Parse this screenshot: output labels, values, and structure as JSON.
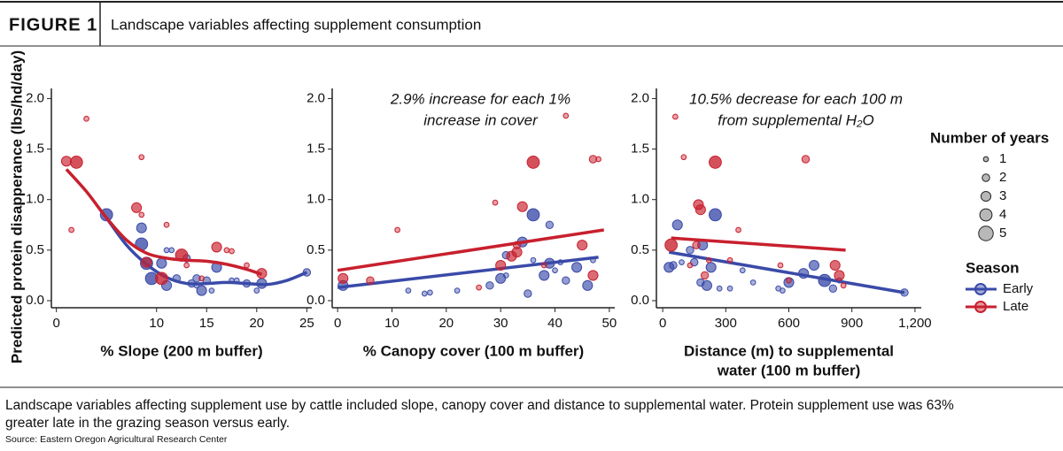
{
  "figure_label": "FIGURE 1",
  "title": "Landscape variables affecting supplement consumption",
  "caption": [
    "Landscape variables affecting supplement use by cattle included slope, canopy cover and distance to supplemental water. Protein supplement use was 63%",
    "greater late in the grazing season versus early."
  ],
  "source": "Source: Eastern Oregon Agricultural Research Center",
  "size_legend": {
    "title": "Number of years",
    "values": [
      1,
      2,
      3,
      4,
      5
    ]
  },
  "color_legend": {
    "title": "Season"
  },
  "chart_data": [
    {
      "type": "scatter",
      "ylabel": "Predicted protein disapperance (lbs/hd/day)",
      "xlabel": [
        "% Slope (200 m buffer)"
      ],
      "xlim": [
        -0.5,
        25.5
      ],
      "xticks": [
        0,
        10,
        15,
        20,
        25
      ],
      "ylim": [
        -0.07,
        2.1
      ],
      "yticks": [
        {
          "value": 0,
          "label": "0.0"
        },
        {
          "value": 0.5,
          "label": "0.5"
        },
        {
          "value": 1,
          "label": "1.0"
        },
        {
          "value": 1.5,
          "label": "1.5"
        },
        {
          "value": 2,
          "label": "2.0"
        }
      ],
      "series": [
        {
          "name": "Early",
          "color": "#3a4aa8",
          "x": [
            5,
            8.5,
            8.5,
            9,
            9.5,
            10.5,
            11,
            11,
            11.5,
            12,
            14,
            14,
            14.5,
            15,
            15.5,
            16,
            17.5,
            18,
            19,
            20,
            20.5,
            25,
            13,
            13.5
          ],
          "values": [
            0.85,
            0.72,
            0.56,
            0.37,
            0.22,
            0.37,
            0.15,
            0.5,
            0.5,
            0.22,
            0.22,
            0.15,
            0.1,
            0.2,
            0.1,
            0.33,
            0.2,
            0.2,
            0.17,
            0.1,
            0.17,
            0.28,
            0.42,
            0.17
          ],
          "sizes": [
            4,
            3,
            4,
            4,
            4,
            3,
            3,
            1,
            1,
            2,
            2,
            1,
            3,
            2,
            1,
            3,
            1,
            1,
            2,
            1,
            3,
            2,
            2,
            2
          ],
          "trend_x": [
            5,
            7,
            9,
            11,
            13,
            15,
            17,
            19,
            21,
            23,
            25
          ],
          "trend_y": [
            0.82,
            0.55,
            0.36,
            0.23,
            0.17,
            0.17,
            0.18,
            0.17,
            0.16,
            0.2,
            0.28
          ]
        },
        {
          "name": "Late",
          "color": "#c8202e",
          "x": [
            1,
            1.5,
            2,
            3,
            8,
            8.5,
            9,
            10.5,
            11,
            12.5,
            13,
            14.5,
            16,
            17,
            17.5,
            19,
            20.5,
            8.5
          ],
          "values": [
            1.38,
            0.7,
            1.37,
            1.8,
            0.92,
            1.42,
            0.38,
            0.22,
            0.75,
            0.45,
            0.35,
            0.22,
            0.53,
            0.5,
            0.49,
            0.35,
            0.27,
            0.85
          ],
          "sizes": [
            3,
            1,
            4,
            1,
            3,
            1,
            3,
            4,
            1,
            4,
            1,
            1,
            3,
            1,
            1,
            1,
            3,
            1
          ],
          "trend_x": [
            1,
            3,
            5,
            7,
            9,
            11,
            13,
            15,
            17,
            19,
            20.5
          ],
          "trend_y": [
            1.3,
            1.08,
            0.82,
            0.6,
            0.47,
            0.42,
            0.4,
            0.39,
            0.36,
            0.31,
            0.26
          ]
        }
      ]
    },
    {
      "type": "scatter",
      "xlabel": [
        "% Canopy cover (100 m buffer)"
      ],
      "annotation": [
        "2.9% increase for each 1%",
        "increase in cover"
      ],
      "xlim": [
        -1,
        51
      ],
      "xticks": [
        0,
        10,
        20,
        30,
        40,
        50
      ],
      "ylim": [
        -0.07,
        2.1
      ],
      "yticks": [
        {
          "value": 0,
          "label": "0.0"
        },
        {
          "value": 0.5,
          "label": "0.5"
        },
        {
          "value": 1,
          "label": "1.0"
        },
        {
          "value": 1.5,
          "label": "1.5"
        },
        {
          "value": 2,
          "label": "2.0"
        }
      ],
      "series": [
        {
          "name": "Early",
          "color": "#3a4aa8",
          "x": [
            1,
            13,
            16,
            17,
            22,
            28,
            30,
            31,
            34,
            35,
            36,
            38,
            39,
            39,
            40,
            41,
            42,
            44,
            46,
            47,
            31,
            36
          ],
          "values": [
            0.15,
            0.1,
            0.07,
            0.08,
            0.1,
            0.15,
            0.22,
            0.45,
            0.58,
            0.07,
            0.85,
            0.25,
            0.37,
            0.75,
            0.3,
            0.38,
            0.2,
            0.33,
            0.15,
            0.4,
            0.25,
            0.4
          ],
          "sizes": [
            3,
            1,
            1,
            1,
            1,
            2,
            3,
            2,
            3,
            2,
            4,
            3,
            3,
            2,
            1,
            1,
            2,
            3,
            3,
            1,
            1,
            1
          ],
          "trend_x": [
            0,
            48
          ],
          "trend_y": [
            0.13,
            0.43
          ]
        },
        {
          "name": "Late",
          "color": "#c8202e",
          "x": [
            1,
            6,
            11,
            29,
            30,
            32,
            33,
            33,
            34,
            36,
            38,
            42,
            45,
            47,
            47,
            48,
            26
          ],
          "values": [
            0.22,
            0.2,
            0.7,
            0.97,
            0.35,
            0.44,
            0.48,
            0.55,
            0.93,
            1.37,
            0.35,
            1.83,
            0.55,
            1.4,
            0.25,
            1.4,
            0.13
          ],
          "sizes": [
            3,
            2,
            1,
            1,
            3,
            3,
            3,
            2,
            3,
            4,
            1,
            1,
            3,
            2,
            3,
            1,
            1
          ],
          "trend_x": [
            0,
            49
          ],
          "trend_y": [
            0.3,
            0.7
          ]
        }
      ]
    },
    {
      "type": "scatter",
      "xlabel": [
        "Distance (m) to supplemental",
        "water (100 m buffer)"
      ],
      "annotation": [
        "10.5% decrease for each 100 m",
        "from supplemental H₂O"
      ],
      "xlim": [
        -30,
        1230
      ],
      "xticks": [
        0,
        300,
        600,
        900,
        {
          "value": 1200,
          "label": "1,200"
        }
      ],
      "ylim": [
        -0.07,
        2.1
      ],
      "yticks": [
        {
          "value": 0,
          "label": "0.0"
        },
        {
          "value": 0.5,
          "label": "0.5"
        },
        {
          "value": 1,
          "label": "1.0"
        },
        {
          "value": 1.5,
          "label": "1.5"
        },
        {
          "value": 2,
          "label": "2.0"
        }
      ],
      "series": [
        {
          "name": "Early",
          "color": "#3a4aa8",
          "x": [
            30,
            50,
            70,
            90,
            130,
            150,
            180,
            190,
            210,
            230,
            250,
            270,
            320,
            380,
            430,
            550,
            570,
            600,
            670,
            720,
            770,
            810,
            840,
            1150
          ],
          "values": [
            0.33,
            0.35,
            0.75,
            0.38,
            0.5,
            0.38,
            0.18,
            0.55,
            0.15,
            0.33,
            0.85,
            0.12,
            0.12,
            0.3,
            0.18,
            0.12,
            0.1,
            0.18,
            0.27,
            0.35,
            0.2,
            0.12,
            0.2,
            0.08
          ],
          "sizes": [
            3,
            2,
            3,
            1,
            2,
            2,
            2,
            3,
            3,
            3,
            4,
            1,
            1,
            1,
            1,
            1,
            1,
            3,
            3,
            3,
            4,
            2,
            1,
            2
          ],
          "trend_x": [
            30,
            1150
          ],
          "trend_y": [
            0.48,
            0.08
          ]
        },
        {
          "name": "Late",
          "color": "#c8202e",
          "x": [
            40,
            60,
            100,
            130,
            170,
            180,
            200,
            220,
            250,
            320,
            360,
            560,
            600,
            680,
            820,
            840,
            860,
            160
          ],
          "values": [
            0.55,
            1.82,
            1.42,
            0.35,
            0.95,
            0.9,
            0.25,
            0.4,
            1.37,
            0.4,
            0.7,
            0.35,
            0.2,
            1.4,
            0.35,
            0.25,
            0.15,
            0.55
          ],
          "sizes": [
            4,
            1,
            1,
            1,
            3,
            3,
            2,
            1,
            4,
            1,
            1,
            1,
            1,
            2,
            3,
            3,
            1,
            2
          ],
          "trend_x": [
            40,
            870
          ],
          "trend_y": [
            0.62,
            0.5
          ]
        }
      ]
    }
  ]
}
